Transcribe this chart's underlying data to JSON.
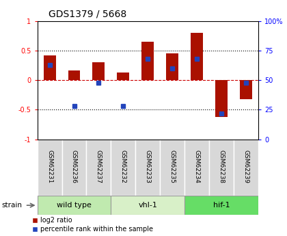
{
  "title": "GDS1379 / 5668",
  "samples": [
    "GSM62231",
    "GSM62236",
    "GSM62237",
    "GSM62232",
    "GSM62233",
    "GSM62235",
    "GSM62234",
    "GSM62238",
    "GSM62239"
  ],
  "log2_ratio": [
    0.42,
    0.17,
    0.3,
    0.13,
    0.65,
    0.45,
    0.8,
    -0.62,
    -0.32
  ],
  "percentile_pct": [
    63,
    28,
    48,
    28,
    68,
    60,
    68,
    22,
    48
  ],
  "groups": [
    {
      "label": "wild type",
      "start": 0,
      "end": 3,
      "color": "#c0eaaf"
    },
    {
      "label": "vhl-1",
      "start": 3,
      "end": 6,
      "color": "#d8f0c8"
    },
    {
      "label": "hif-1",
      "start": 6,
      "end": 9,
      "color": "#66dd66"
    }
  ],
  "ylim_left": [
    -1,
    1
  ],
  "ylim_right": [
    0,
    100
  ],
  "left_ticks": [
    -1,
    -0.5,
    0,
    0.5,
    1
  ],
  "right_ticks": [
    0,
    25,
    50,
    75,
    100
  ],
  "bar_color_red": "#aa1100",
  "bar_color_blue": "#2244bb",
  "hline_zero_color": "#cc0000",
  "hline_dotted_color": "black",
  "bg_color": "#d8d8d8",
  "legend_red": "log2 ratio",
  "legend_blue": "percentile rank within the sample",
  "bar_width": 0.5,
  "blue_marker_size": 5
}
